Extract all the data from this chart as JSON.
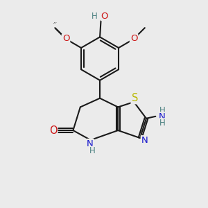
{
  "bg_color": "#ebebeb",
  "bond_color": "#1a1a1a",
  "bond_width": 1.5,
  "atom_colors": {
    "C": "#1a1a1a",
    "N": "#1414cc",
    "O": "#cc1414",
    "S": "#b8b800",
    "H": "#4a8080"
  },
  "font_size": 8.5,
  "fig_size": [
    3.0,
    3.0
  ],
  "dpi": 100
}
